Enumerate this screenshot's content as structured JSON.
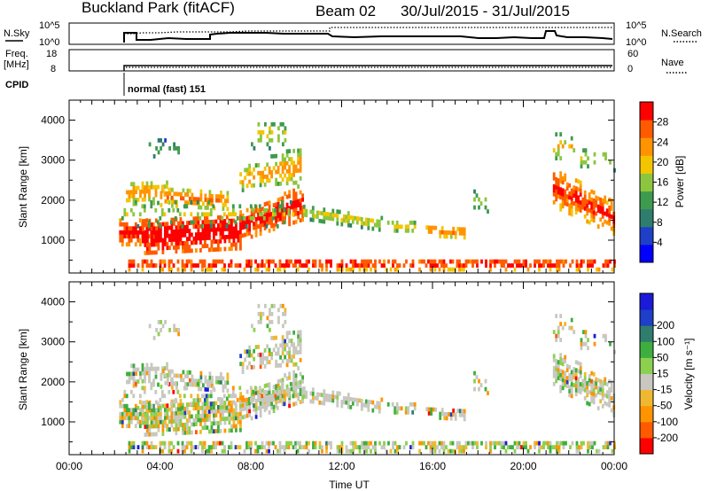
{
  "header": {
    "site": "Buckland Park (fitACF)",
    "beam": "Beam 02",
    "dates": "30/Jul/2015 - 31/Jul/2015"
  },
  "noise_panel": {
    "left_label": "N.Sky",
    "right_label": "N.Search",
    "left_ticks": [
      "10^5",
      "10^0"
    ],
    "right_ticks": [
      "10^5",
      "10^0"
    ]
  },
  "freq_panel": {
    "left_label_1": "Freq.",
    "left_label_2": "[MHz]",
    "right_label": "Nave",
    "left_ticks": [
      "18",
      "8"
    ],
    "right_ticks": [
      "60",
      "0"
    ]
  },
  "cpid": {
    "label": "CPID",
    "mode": "normal (fast) 151"
  },
  "colors": {
    "power": [
      "#0000ff",
      "#1e3fc8",
      "#2e7d6e",
      "#3e9b4e",
      "#8cc63f",
      "#f2c500",
      "#ff9400",
      "#ff5a00",
      "#ff0000"
    ],
    "velocity": [
      "#ff0000",
      "#ff5a00",
      "#ff9400",
      "#f0b830",
      "#c8c8c0",
      "#8cd050",
      "#3eae3e",
      "#2e7d6e",
      "#1e3fc8",
      "#1a1ad8"
    ]
  },
  "chart_data": [
    {
      "type": "heatmap",
      "name": "power",
      "xlabel": "",
      "ylabel": "Slant Range [km]",
      "xlim": [
        0,
        24
      ],
      "ylim": [
        180,
        4500
      ],
      "yticks": [
        "1000",
        "2000",
        "3000",
        "4000"
      ],
      "colorbar": {
        "label": "Power [dB]",
        "ticks": [
          "4",
          "8",
          "12",
          "16",
          "20",
          "24",
          "28"
        ],
        "range": [
          0,
          32
        ]
      }
    },
    {
      "type": "heatmap",
      "name": "velocity",
      "xlabel": "Time UT",
      "ylabel": "Slant Range [km]",
      "xlim": [
        0,
        24
      ],
      "ylim": [
        180,
        4500
      ],
      "xticks": [
        "00:00",
        "04:00",
        "08:00",
        "12:00",
        "16:00",
        "20:00",
        "00:00"
      ],
      "yticks": [
        "1000",
        "2000",
        "3000",
        "4000"
      ],
      "colorbar": {
        "label": "Velocity [m s⁻¹]",
        "ticks": [
          "-200",
          "-100",
          "-50",
          "-15",
          "15",
          "50",
          "100",
          "200"
        ]
      }
    }
  ]
}
